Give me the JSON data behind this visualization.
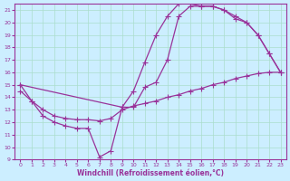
{
  "xlabel": "Windchill (Refroidissement éolien,°C)",
  "background_color": "#cceeff",
  "grid_color": "#aaddcc",
  "line_color": "#993399",
  "xlim": [
    -0.5,
    23.5
  ],
  "ylim": [
    9,
    21.5
  ],
  "xticks": [
    0,
    1,
    2,
    3,
    4,
    5,
    6,
    7,
    8,
    9,
    10,
    11,
    12,
    13,
    14,
    15,
    16,
    17,
    18,
    19,
    20,
    21,
    22,
    23
  ],
  "yticks": [
    9,
    10,
    11,
    12,
    13,
    14,
    15,
    16,
    17,
    18,
    19,
    20,
    21
  ],
  "curve1_x": [
    0,
    1,
    2,
    3,
    4,
    5,
    6,
    7,
    8,
    9,
    10,
    11,
    12,
    13,
    14,
    15,
    16,
    17,
    18,
    19,
    20,
    21,
    22,
    23
  ],
  "curve1_y": [
    15,
    13.7,
    12.5,
    12.0,
    11.7,
    11.5,
    11.5,
    9.2,
    9.7,
    13.2,
    13.2,
    14.8,
    15.2,
    17.0,
    20.5,
    21.3,
    21.3,
    21.3,
    21.0,
    20.5,
    20.0,
    19.0,
    17.5,
    16.0
  ],
  "curve2_x": [
    0,
    1,
    2,
    3,
    4,
    5,
    6,
    7,
    8,
    9,
    10,
    11,
    12,
    13,
    14,
    15,
    16,
    17,
    18,
    19,
    20,
    21,
    22,
    23
  ],
  "curve2_y": [
    14.5,
    13.7,
    13.0,
    12.5,
    12.3,
    12.2,
    12.2,
    12.1,
    12.3,
    13.0,
    13.3,
    13.5,
    13.7,
    14.0,
    14.2,
    14.5,
    14.7,
    15.0,
    15.2,
    15.5,
    15.7,
    15.9,
    16.0,
    16.0
  ],
  "curve3_x": [
    0,
    9,
    10,
    11,
    12,
    13,
    14,
    15,
    16,
    17,
    18,
    19,
    20,
    21,
    22,
    23
  ],
  "curve3_y": [
    15,
    13.2,
    14.5,
    16.8,
    19.0,
    20.5,
    21.5,
    21.5,
    21.3,
    21.3,
    21.0,
    20.3,
    20.0,
    19.0,
    17.5,
    16.0
  ]
}
